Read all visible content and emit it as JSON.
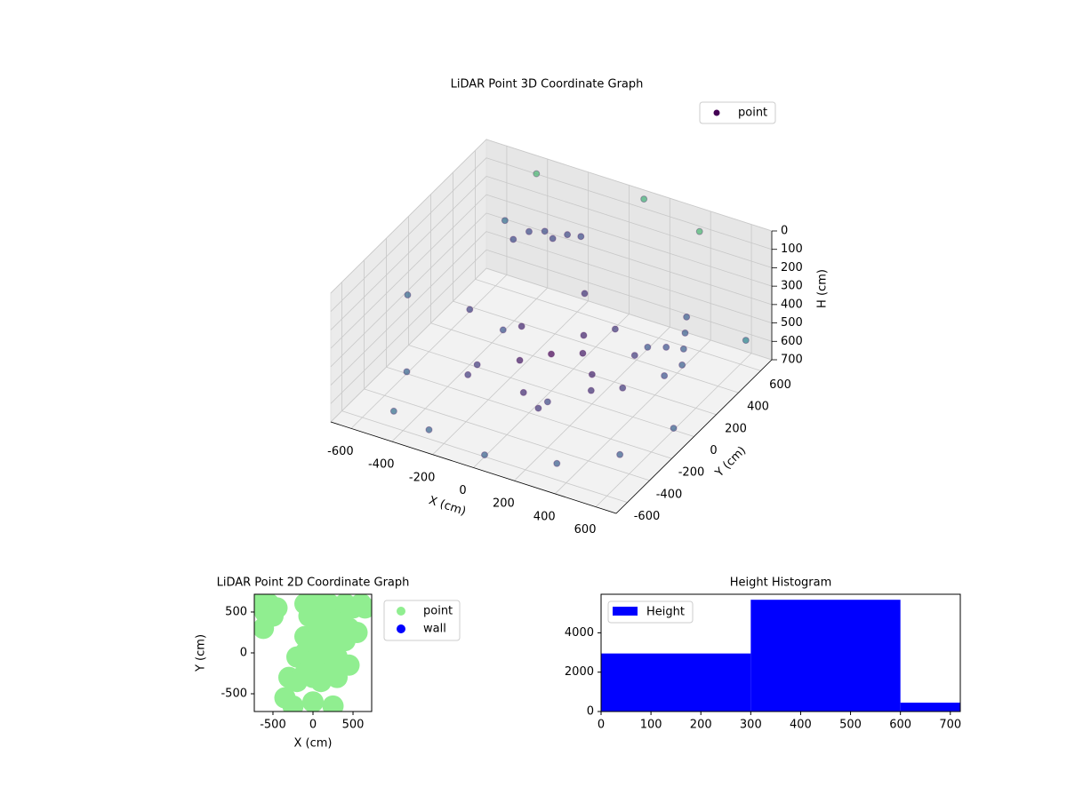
{
  "chart_data": [
    {
      "type": "scatter3d",
      "title": "LiDAR Point 3D Coordinate Graph",
      "x_label": "X (cm)",
      "y_label": "Y (cm)",
      "z_label": "H (cm)",
      "xlim": [
        -700,
        700
      ],
      "ylim": [
        -700,
        700
      ],
      "zlim": [
        700,
        0
      ],
      "xticks": [
        -600,
        -400,
        -200,
        0,
        200,
        400,
        600
      ],
      "yticks": [
        -600,
        -400,
        -200,
        0,
        200,
        400,
        600
      ],
      "zticks": [
        0,
        100,
        200,
        300,
        400,
        500,
        600,
        700
      ],
      "grid": true,
      "legend": "upper right",
      "colormap": "viridis",
      "series": [
        {
          "name": "point",
          "color": "#440154",
          "x": [
            -300,
            -250,
            -200,
            -150,
            -100,
            -350,
            0,
            100,
            200,
            -100,
            50,
            150,
            300,
            250,
            -200,
            0,
            100,
            -300,
            350,
            400,
            500,
            520,
            540,
            560,
            500,
            -500,
            -300,
            0,
            300,
            500,
            600,
            -600,
            -400,
            200,
            -400,
            100,
            400,
            -500,
            600,
            -650,
            -400,
            -200,
            0,
            200
          ],
          "y": [
            350,
            400,
            380,
            420,
            450,
            300,
            0,
            100,
            0,
            -100,
            200,
            300,
            200,
            -100,
            100,
            -250,
            -300,
            -200,
            0,
            300,
            300,
            250,
            200,
            150,
            100,
            -500,
            -550,
            -600,
            -500,
            -300,
            0,
            -200,
            300,
            500,
            600,
            650,
            600,
            500,
            650,
            -100,
            0,
            -300,
            300,
            -400
          ],
          "z": [
            150,
            160,
            170,
            155,
            165,
            180,
            500,
            520,
            540,
            510,
            500,
            490,
            520,
            550,
            480,
            560,
            580,
            600,
            560,
            500,
            300,
            350,
            400,
            450,
            500,
            690,
            690,
            690,
            690,
            690,
            690,
            690,
            690,
            690,
            20,
            10,
            50,
            250,
            600,
            350,
            400,
            450,
            350,
            450
          ]
        }
      ]
    },
    {
      "type": "scatter",
      "title": "LiDAR Point 2D Coordinate Graph",
      "x_label": "X (cm)",
      "y_label": "Y (cm)",
      "xlim": [
        -733,
        733
      ],
      "ylim": [
        -717,
        717
      ],
      "xticks": [
        -500,
        0,
        500
      ],
      "yticks": [
        -500,
        0,
        500
      ],
      "legend": "outside right",
      "series": [
        {
          "name": "point",
          "color": "#90ee90",
          "x": [
            -650,
            -550,
            -450,
            -600,
            -500,
            -620,
            -100,
            0,
            100,
            200,
            300,
            400,
            500,
            -50,
            50,
            150,
            250,
            350,
            450,
            -100,
            0,
            100,
            200,
            300,
            400,
            -200,
            -100,
            0,
            100,
            200,
            300,
            -300,
            -200,
            -100,
            0,
            100,
            200,
            300,
            600,
            650,
            -350,
            450,
            550,
            -250,
            0,
            250
          ],
          "y": [
            650,
            600,
            550,
            500,
            450,
            300,
            600,
            650,
            650,
            600,
            550,
            600,
            550,
            450,
            400,
            450,
            400,
            350,
            300,
            200,
            150,
            200,
            150,
            100,
            150,
            -50,
            0,
            -100,
            -50,
            0,
            -50,
            -300,
            -350,
            -250,
            -300,
            -350,
            -250,
            -300,
            600,
            550,
            -550,
            -150,
            250,
            -650,
            -600,
            -650
          ]
        },
        {
          "name": "wall",
          "color": "#0000ff",
          "x": [],
          "y": []
        }
      ]
    },
    {
      "type": "histogram",
      "title": "Height Histogram",
      "bins": [
        0,
        300,
        600,
        720
      ],
      "xlim": [
        0,
        720
      ],
      "ylim": [
        0,
        5960
      ],
      "xticks": [
        0,
        100,
        200,
        300,
        400,
        500,
        600,
        700
      ],
      "yticks": [
        0,
        2000,
        4000
      ],
      "legend": "upper left",
      "series": [
        {
          "name": "Height",
          "color": "#0000ff",
          "values": [
            2950,
            5680,
            450
          ]
        }
      ]
    }
  ]
}
